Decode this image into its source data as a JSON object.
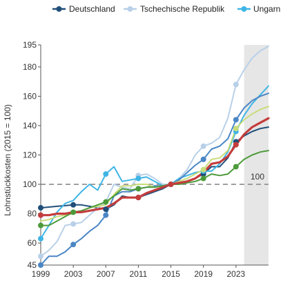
{
  "chart_data": {
    "type": "line",
    "title": "",
    "xlabel": "",
    "ylabel": "Lohnstückkosten (2015 = 100)",
    "ylim": [
      45,
      195
    ],
    "xlim": [
      1999,
      2027
    ],
    "y_ticks": [
      45,
      60,
      80,
      100,
      120,
      140,
      160,
      180,
      195
    ],
    "x_ticks": [
      1999,
      2003,
      2007,
      2011,
      2015,
      2019,
      2023
    ],
    "reference_line": {
      "value": 100,
      "label": "100"
    },
    "projection_shading_from": 2024,
    "grid": false,
    "legend_position": "top",
    "legend": [
      "Deutschland",
      "Tschechische Republik",
      "Ungarn"
    ],
    "series": [
      {
        "name": "Deutschland",
        "color": "#1f4e79",
        "x": [
          1999,
          2000,
          2001,
          2002,
          2003,
          2004,
          2005,
          2006,
          2007,
          2008,
          2009,
          2010,
          2011,
          2012,
          2013,
          2014,
          2015,
          2016,
          2017,
          2018,
          2019,
          2020,
          2021,
          2022,
          2023,
          2024,
          2025,
          2026,
          2027
        ],
        "values": [
          84,
          84.5,
          85,
          85.5,
          86,
          86,
          85,
          84,
          83,
          86,
          92,
          91,
          91,
          93,
          95,
          97,
          100,
          101,
          102,
          104,
          107,
          112,
          112,
          118,
          129,
          133,
          136,
          138,
          139
        ],
        "markers": [
          1999,
          2003,
          2007,
          2011,
          2015,
          2019,
          2023
        ]
      },
      {
        "name": "Tschechische Republik",
        "color": "#b8d0e8",
        "x": [
          1999,
          2000,
          2001,
          2002,
          2003,
          2004,
          2005,
          2006,
          2007,
          2008,
          2009,
          2010,
          2011,
          2012,
          2013,
          2014,
          2015,
          2016,
          2017,
          2018,
          2019,
          2020,
          2021,
          2022,
          2023,
          2024,
          2025,
          2026,
          2027
        ],
        "values": [
          51,
          55,
          61,
          72,
          73,
          74,
          79,
          84,
          88,
          100,
          98,
          97,
          106,
          107,
          104,
          100,
          100,
          104,
          110,
          120,
          126,
          128,
          132,
          145,
          168,
          178,
          186,
          191,
          194
        ],
        "markers": [
          1999,
          2003,
          2011,
          2019,
          2023
        ]
      },
      {
        "name": "Ungarn",
        "color": "#3fb5e5",
        "x": [
          1999,
          2000,
          2001,
          2002,
          2003,
          2004,
          2005,
          2006,
          2007,
          2008,
          2009,
          2010,
          2011,
          2012,
          2013,
          2014,
          2015,
          2016,
          2017,
          2018,
          2019,
          2020,
          2021,
          2022,
          2023,
          2024,
          2025,
          2026,
          2027
        ],
        "values": [
          63,
          72,
          81,
          87,
          89,
          95,
          100,
          96,
          107,
          112,
          102,
          103,
          104,
          105,
          102,
          99,
          100,
          104,
          106,
          108,
          109,
          109,
          114,
          122,
          136,
          147,
          155,
          161,
          167
        ],
        "markers": [
          1999,
          2007,
          2011,
          2015,
          2019,
          2023
        ]
      },
      {
        "color": "#4a86c5",
        "x": [
          1999,
          2000,
          2001,
          2002,
          2003,
          2004,
          2005,
          2006,
          2007,
          2008,
          2009,
          2010,
          2011,
          2012,
          2013,
          2014,
          2015,
          2016,
          2017,
          2018,
          2019,
          2020,
          2021,
          2022,
          2023,
          2024,
          2025,
          2026,
          2027
        ],
        "values": [
          45,
          51,
          51,
          54,
          59,
          63,
          68,
          72,
          79,
          92,
          95,
          95,
          97,
          98,
          99,
          99,
          100,
          103,
          108,
          113,
          117,
          124,
          126,
          131,
          144,
          152,
          157,
          160,
          162
        ],
        "markers": [
          1999,
          2003,
          2007,
          2011,
          2015,
          2019,
          2023
        ]
      },
      {
        "color": "#c8dc78",
        "x": [
          1999,
          2000,
          2001,
          2002,
          2003,
          2004,
          2005,
          2006,
          2007,
          2008,
          2009,
          2010,
          2011,
          2012,
          2013,
          2014,
          2015,
          2016,
          2017,
          2018,
          2019,
          2020,
          2021,
          2022,
          2023,
          2024,
          2025,
          2026,
          2027
        ],
        "values": [
          75,
          76,
          78,
          79,
          80,
          82,
          84,
          85,
          86,
          93,
          99,
          99,
          100,
          100,
          98,
          99,
          100,
          102,
          104,
          107,
          110,
          117,
          118,
          123,
          138,
          144,
          148,
          151,
          153
        ],
        "markers": [
          2019,
          2023
        ]
      },
      {
        "color": "#4c9a3a",
        "x": [
          1999,
          2000,
          2001,
          2002,
          2003,
          2004,
          2005,
          2006,
          2007,
          2008,
          2009,
          2010,
          2011,
          2012,
          2013,
          2014,
          2015,
          2016,
          2017,
          2018,
          2019,
          2020,
          2021,
          2022,
          2023,
          2024,
          2025,
          2026,
          2027
        ],
        "values": [
          72,
          72,
          75,
          78,
          81,
          82,
          84,
          86,
          88,
          92,
          97,
          96,
          97,
          98,
          98,
          99,
          100,
          100,
          101,
          102,
          104,
          107,
          106,
          107,
          112,
          117,
          120,
          122,
          123
        ],
        "markers": [
          1999,
          2003,
          2007,
          2011,
          2015,
          2019,
          2023
        ]
      },
      {
        "color": "#c43c3c",
        "x": [
          1999,
          2000,
          2001,
          2002,
          2003,
          2004,
          2005,
          2006,
          2007,
          2008,
          2009,
          2010,
          2011,
          2012,
          2013,
          2014,
          2015,
          2016,
          2017,
          2018,
          2019,
          2020,
          2021,
          2022,
          2023,
          2024,
          2025,
          2026,
          2027
        ],
        "values": [
          79,
          79,
          80,
          80,
          81,
          81,
          82,
          83,
          84,
          87,
          91,
          91,
          91,
          94,
          96,
          98,
          100,
          101,
          102,
          104,
          108,
          114,
          115,
          119,
          127,
          134,
          139,
          142,
          145
        ],
        "markers": [
          1999,
          2011,
          2015,
          2023
        ]
      }
    ]
  }
}
